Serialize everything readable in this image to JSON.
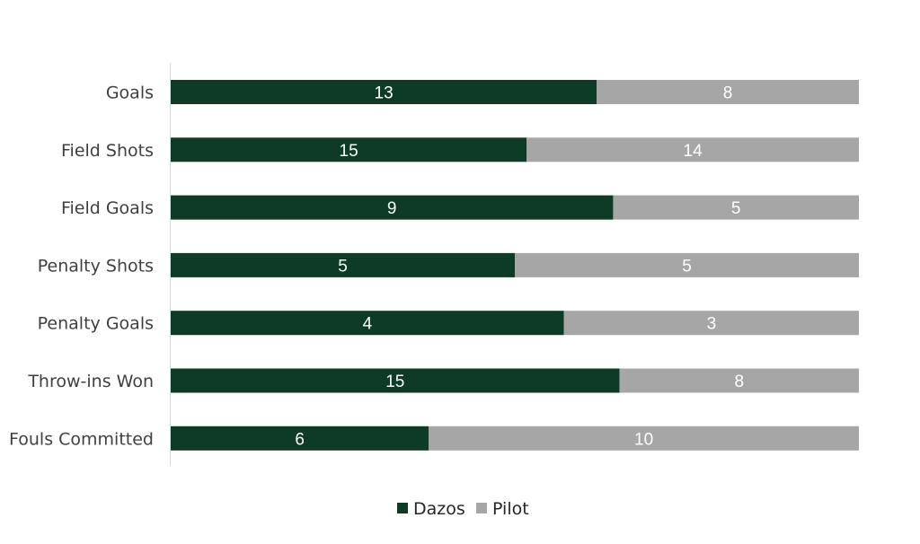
{
  "chart_data": {
    "type": "bar",
    "orientation": "horizontal",
    "stacking": "percent",
    "categories": [
      "Goals",
      "Field Shots",
      "Field Goals",
      "Penalty Shots",
      "Penalty Goals",
      "Throw-ins Won",
      "Fouls Committed"
    ],
    "series": [
      {
        "name": "Dazos",
        "values": [
          13,
          15,
          9,
          5,
          4,
          15,
          6
        ],
        "color": "#0d3b26"
      },
      {
        "name": "Pilot",
        "values": [
          8,
          14,
          5,
          5,
          3,
          8,
          10
        ],
        "color": "#a6a6a6"
      }
    ],
    "title": "",
    "xlabel": "",
    "ylabel": "",
    "legend_position": "bottom",
    "grid": false,
    "data_labels": true
  }
}
